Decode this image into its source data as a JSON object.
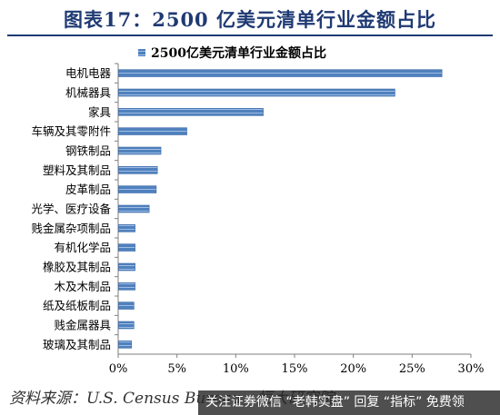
{
  "figure_title": "图表17：2500 亿美元清单行业金额占比",
  "source_text": "资料来源：U.S. Census Bureau，恒大研究院",
  "footer_text": "关注证券微信 “老韩实盘” 回复 “指标” 免费领",
  "chart_data": {
    "type": "bar",
    "orientation": "horizontal",
    "title": "",
    "xlabel": "",
    "ylabel": "",
    "legend": {
      "entries": [
        "2500亿美元清单行业金额占比"
      ],
      "placement": "top"
    },
    "categories": [
      "电机电器",
      "机械器具",
      "家具",
      "车辆及其零附件",
      "钢铁制品",
      "塑料及其制品",
      "皮革制品",
      "光学、医疗设备",
      "贱金属杂项制品",
      "有机化学品",
      "橡胶及其制品",
      "木及木制品",
      "纸及纸板制品",
      "贱金属器具",
      "玻璃及其制品"
    ],
    "series": [
      {
        "name": "2500亿美元清单行业金额占比",
        "values": [
          0.275,
          0.235,
          0.123,
          0.058,
          0.036,
          0.033,
          0.032,
          0.026,
          0.014,
          0.014,
          0.014,
          0.014,
          0.013,
          0.013,
          0.011
        ]
      }
    ],
    "xlim": [
      0,
      0.3
    ],
    "xticks": [
      0,
      0.05,
      0.1,
      0.15,
      0.2,
      0.25,
      0.3
    ],
    "xtick_labels": [
      "0%",
      "5%",
      "10%",
      "15%",
      "20%",
      "25%",
      "30%"
    ],
    "grid": false,
    "colors": {
      "bar": "#4f81bd",
      "axis": "#7f7f7f",
      "title": "#1f3a73"
    }
  }
}
